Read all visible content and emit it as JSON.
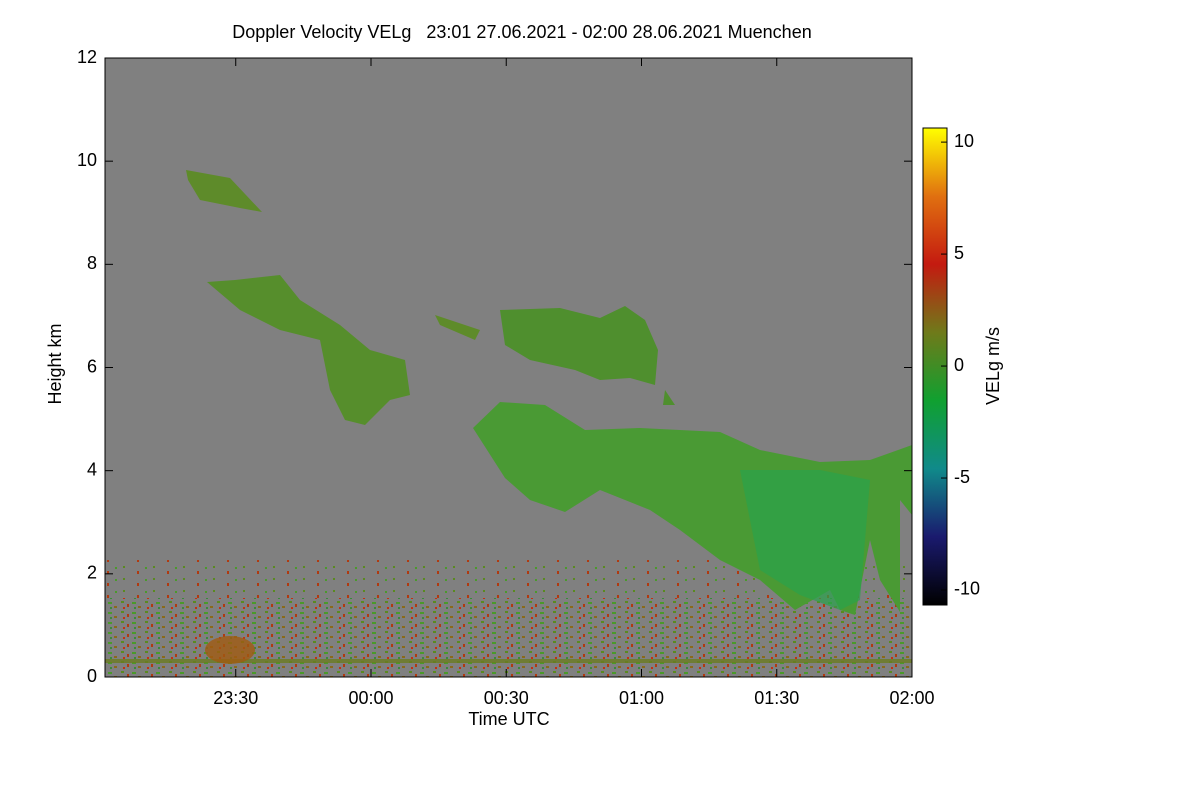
{
  "chart_data": {
    "type": "heatmap",
    "title": "Doppler Velocity VELg   23:01 27.06.2021 - 02:00 28.06.2021 Muenchen",
    "x_label": "Time UTC",
    "y_label": "Height km",
    "xlim": [
      -0.9833,
      2
    ],
    "xticks": [
      {
        "value": -0.5,
        "label": "23:30"
      },
      {
        "value": 0,
        "label": "00:00"
      },
      {
        "value": 0.5,
        "label": "00:30"
      },
      {
        "value": 1,
        "label": "01:00"
      },
      {
        "value": 1.5,
        "label": "01:30"
      },
      {
        "value": 2,
        "label": "02:00"
      }
    ],
    "ylim": [
      0,
      12
    ],
    "yticks": [
      0,
      2,
      4,
      6,
      8,
      10,
      12
    ],
    "colorbar": {
      "label": "VELg m/s",
      "lim": [
        -10.67,
        10.63
      ],
      "ticks": [
        -10,
        -5,
        0,
        5,
        10
      ],
      "colors": [
        "#000000",
        "#1a1a6e",
        "#108a8a",
        "#10a030",
        "#6f7a1a",
        "#c41a10",
        "#e07010",
        "#ffff00"
      ]
    },
    "background": "#808080"
  }
}
